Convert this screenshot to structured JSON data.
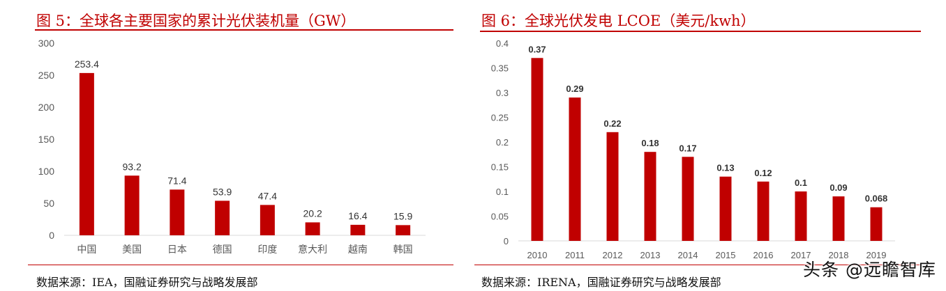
{
  "left_panel": {
    "title": "图 5：全球各主要国家的累计光伏装机量（GW）",
    "source": "数据来源：IEA，国融证券研究与战略发展部"
  },
  "right_panel": {
    "title": "图 6：全球光伏发电 LCOE（美元/kwh）",
    "source": "数据来源：IRENA，国融证券研究与战略发展部"
  },
  "watermark": "头条 @远瞻智库",
  "colors": {
    "bar": "#c00000",
    "title": "#c00000",
    "rule": "#c00000",
    "axis": "#d9d9d9"
  },
  "chart_data": [
    {
      "type": "bar",
      "title": "图 5：全球各主要国家的累计光伏装机量（GW）",
      "categories": [
        "中国",
        "美国",
        "日本",
        "德国",
        "印度",
        "意大利",
        "越南",
        "韩国"
      ],
      "values": [
        253.4,
        93.2,
        71.4,
        53.9,
        47.4,
        20.2,
        16.4,
        15.9
      ],
      "value_labels": [
        "253.4",
        "93.2",
        "71.4",
        "53.9",
        "47.4",
        "20.2",
        "16.4",
        "15.9"
      ],
      "ylim": [
        0,
        300
      ],
      "yticks": [
        "0",
        "50",
        "100",
        "150",
        "200",
        "250",
        "300"
      ],
      "ytick_values": [
        0,
        50,
        100,
        150,
        200,
        250,
        300
      ],
      "xlabel": "",
      "ylabel": "",
      "grid": false,
      "legend": "none"
    },
    {
      "type": "bar",
      "title": "图 6：全球光伏发电 LCOE（美元/kwh）",
      "categories": [
        "2010",
        "2011",
        "2012",
        "2013",
        "2014",
        "2015",
        "2016",
        "2017",
        "2018",
        "2019"
      ],
      "values": [
        0.37,
        0.29,
        0.22,
        0.18,
        0.17,
        0.13,
        0.12,
        0.1,
        0.09,
        0.068
      ],
      "value_labels": [
        "0.37",
        "0.29",
        "0.22",
        "0.18",
        "0.17",
        "0.13",
        "0.12",
        "0.1",
        "0.09",
        "0.068"
      ],
      "ylim": [
        0,
        0.4
      ],
      "yticks": [
        "0",
        "0.05",
        "0.1",
        "0.15",
        "0.2",
        "0.25",
        "0.3",
        "0.35",
        "0.4"
      ],
      "ytick_values": [
        0,
        0.05,
        0.1,
        0.15,
        0.2,
        0.25,
        0.3,
        0.35,
        0.4
      ],
      "xlabel": "",
      "ylabel": "",
      "grid": false,
      "legend": "none"
    }
  ]
}
